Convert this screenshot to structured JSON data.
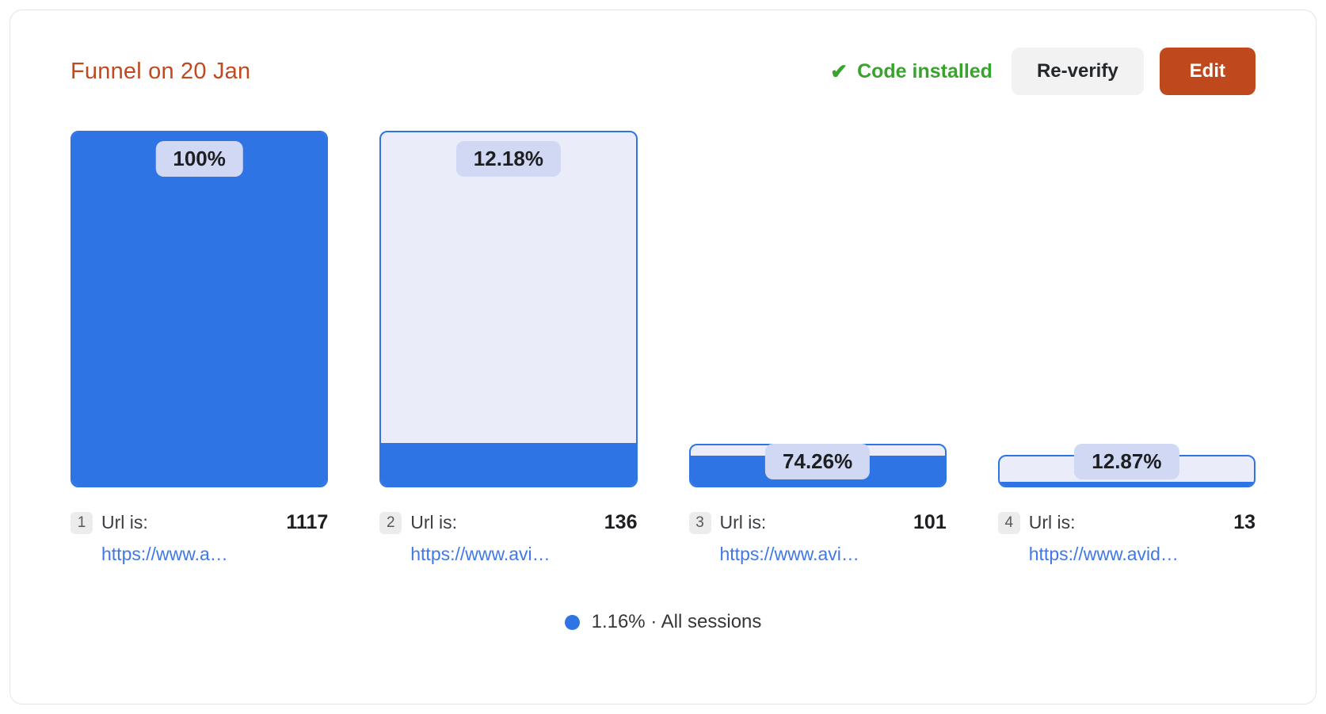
{
  "header": {
    "title": "Funnel on 20 Jan",
    "check_icon": "✔",
    "status_label": "Code installed",
    "reverify_label": "Re-verify",
    "edit_label": "Edit"
  },
  "colors": {
    "accent_orange": "#c0491f",
    "status_green": "#38a42d",
    "bar_blue": "#2e74e4",
    "bar_light_fill": "#eaedf9",
    "badge_bg": "#d1d8f3",
    "link_blue": "#4078e8"
  },
  "chart_data": {
    "type": "bar",
    "subtype": "funnel",
    "title": "Funnel on 20 Jan",
    "steps": [
      {
        "index": "1",
        "label": "Url is:",
        "value": 1117,
        "percent_label": "100%",
        "container_pct": 100,
        "fill_pct": 100,
        "url": "https://www.a…"
      },
      {
        "index": "2",
        "label": "Url is:",
        "value": 136,
        "percent_label": "12.18%",
        "container_pct": 100,
        "fill_pct": 12.18,
        "url": "https://www.avi…"
      },
      {
        "index": "3",
        "label": "Url is:",
        "value": 101,
        "percent_label": "74.26%",
        "container_pct": 12.18,
        "fill_pct": 74.26,
        "url": "https://www.avi…"
      },
      {
        "index": "4",
        "label": "Url is:",
        "value": 13,
        "percent_label": "12.87%",
        "container_pct": 9.04,
        "fill_pct": 12.87,
        "url": "https://www.avid…"
      }
    ],
    "legend": {
      "percent": "1.16%",
      "separator": "·",
      "label": "All sessions"
    },
    "axis": {
      "chart_height_basis": "step 1 sessions = 100%",
      "grid": false
    }
  }
}
